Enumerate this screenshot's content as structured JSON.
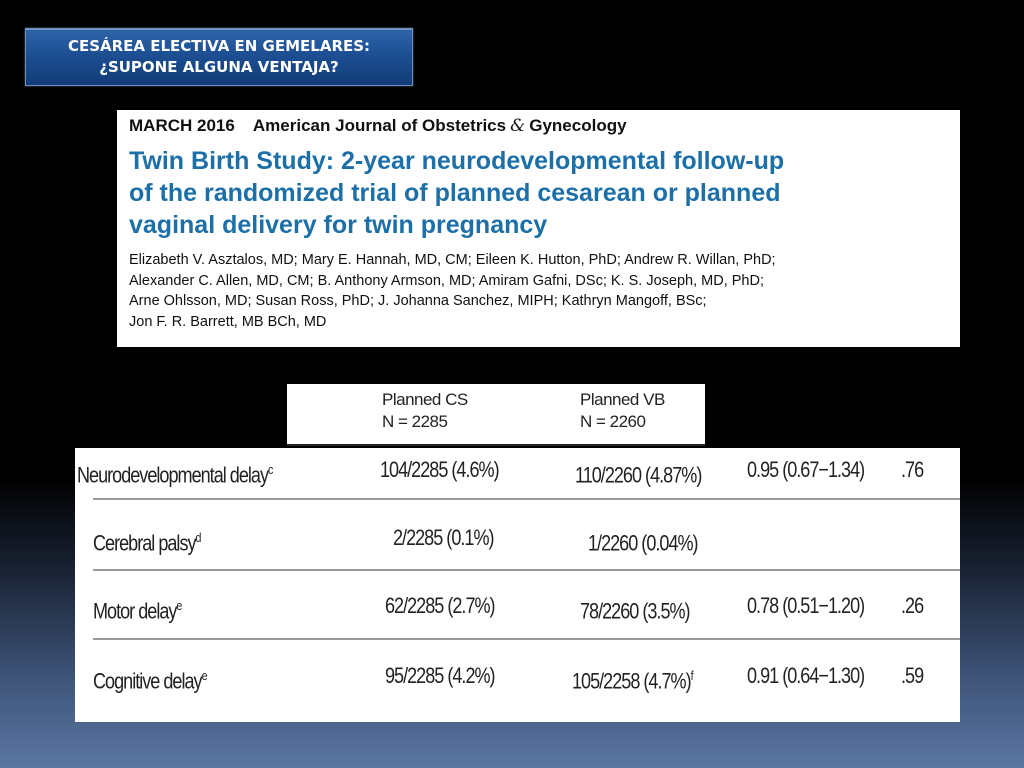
{
  "slide": {
    "title_line1": "CESÁREA ELECTIVA EN GEMELARES:",
    "title_line2": "¿SUPONE ALGUNA VENTAJA?"
  },
  "paper": {
    "date": "MARCH 2016",
    "journal_pre": "American Journal of Obstetrics",
    "journal_amp": "&",
    "journal_post": "Gynecology",
    "title_lines": [
      "Twin Birth Study: 2-year neurodevelopmental follow-up",
      "of the randomized trial of planned cesarean or planned",
      "vaginal delivery for twin pregnancy"
    ],
    "author_lines": [
      "Elizabeth V. Asztalos, MD; Mary E. Hannah, MD, CM; Eileen K. Hutton, PhD; Andrew R. Willan, PhD;",
      "Alexander C. Allen, MD, CM; B. Anthony Armson, MD; Amiram Gafni, DSc; K. S. Joseph, MD, PhD;",
      "Arne Ohlsson, MD; Susan Ross, PhD; J. Johanna Sanchez, MIPH; Kathryn Mangoff, BSc;",
      "Jon F. R. Barrett, MB BCh, MD"
    ]
  },
  "table": {
    "columns": [
      {
        "label": "Planned CS",
        "n": "N = 2285"
      },
      {
        "label": "Planned VB",
        "n": "N = 2260"
      }
    ],
    "rows": [
      {
        "outcome": "Neurodevelopmental delay",
        "sup": "c",
        "cs": "104/2285 (4.6%)",
        "vb": "110/2260 (4.87%)",
        "vb_sup": "",
        "ratio": "0.95 (0.67−1.34)",
        "p": ".76"
      },
      {
        "outcome": "Cerebral palsy",
        "sup": "d",
        "cs": "2/2285 (0.1%)",
        "vb": "1/2260 (0.04%)",
        "vb_sup": "",
        "ratio": "",
        "p": ""
      },
      {
        "outcome": "Motor delay",
        "sup": "e",
        "cs": "62/2285 (2.7%)",
        "vb": "78/2260 (3.5%)",
        "vb_sup": "",
        "ratio": "0.78 (0.51−1.20)",
        "p": ".26"
      },
      {
        "outcome": "Cognitive delay",
        "sup": "e",
        "cs": "95/2285 (4.2%)",
        "vb": "105/2258 (4.7%)",
        "vb_sup": "f",
        "ratio": "0.91 (0.64−1.30)",
        "p": ".59"
      }
    ]
  }
}
